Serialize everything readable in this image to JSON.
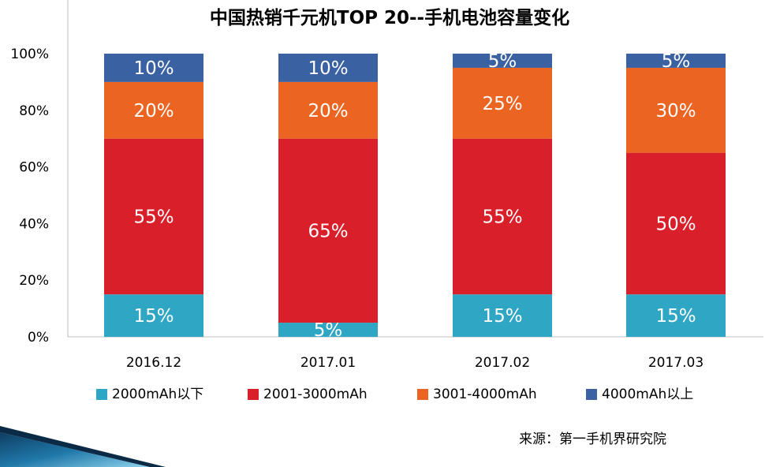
{
  "chart_data": {
    "type": "bar",
    "stacked": true,
    "title": "中国热销千元机TOP 20--手机电池容量变化",
    "xlabel": "",
    "ylabel": "",
    "categories": [
      "2016.12",
      "2017.01",
      "2017.02",
      "2017.03"
    ],
    "y_ticks": [
      "0%",
      "20%",
      "40%",
      "60%",
      "80%",
      "100%"
    ],
    "ylim": [
      0,
      100
    ],
    "grid": false,
    "legend_position": "bottom",
    "series": [
      {
        "name": "2000mAh以下",
        "color": "#2fa6c3",
        "values": [
          15,
          5,
          15,
          15
        ],
        "labels": [
          "15%",
          "5%",
          "15%",
          "15%"
        ]
      },
      {
        "name": "2001-3000mAh",
        "color": "#d81f2a",
        "values": [
          55,
          65,
          55,
          50
        ],
        "labels": [
          "55%",
          "65%",
          "55%",
          "50%"
        ]
      },
      {
        "name": "3001-4000mAh",
        "color": "#ec6421",
        "values": [
          20,
          20,
          25,
          30
        ],
        "labels": [
          "20%",
          "20%",
          "25%",
          "30%"
        ]
      },
      {
        "name": "4000mAh以上",
        "color": "#3a62a3",
        "values": [
          10,
          10,
          5,
          5
        ],
        "labels": [
          "10%",
          "10%",
          "5%",
          "5%"
        ]
      }
    ]
  },
  "source": "来源：第一手机界研究院"
}
